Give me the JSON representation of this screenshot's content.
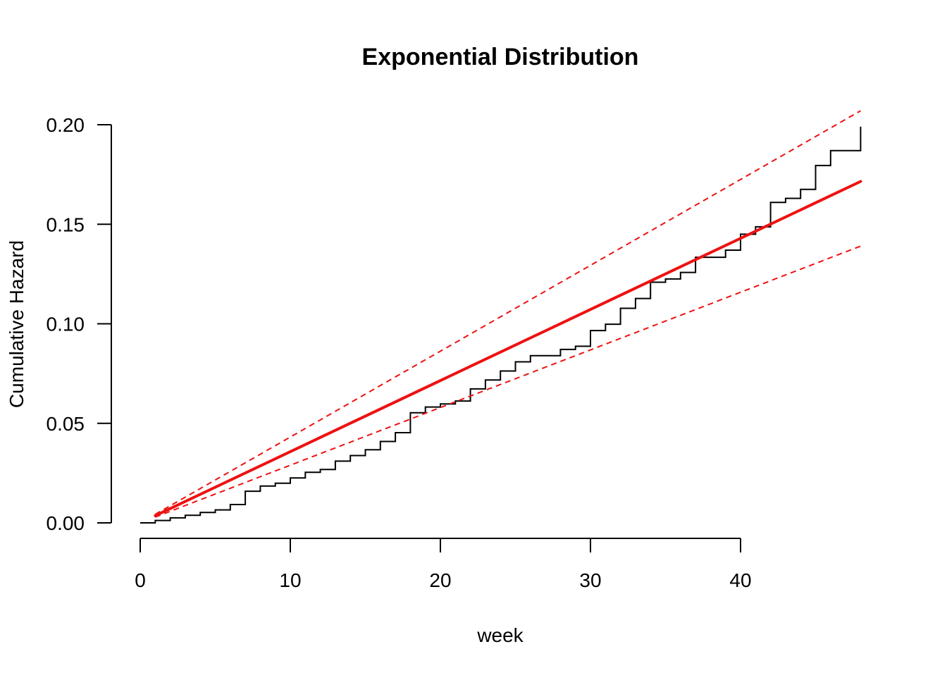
{
  "chart_data": {
    "type": "line",
    "title": "Exponential Distribution",
    "xlabel": "week",
    "ylabel": "Cumulative Hazard",
    "xlim": [
      0,
      48
    ],
    "ylim": [
      0,
      0.2
    ],
    "x_ticks": [
      0,
      10,
      20,
      30,
      40
    ],
    "x_tick_labels": [
      "0",
      "10",
      "20",
      "30",
      "40"
    ],
    "y_ticks": [
      0,
      0.05,
      0.1,
      0.15,
      0.2
    ],
    "y_tick_labels": [
      "0.00",
      "0.05",
      "0.10",
      "0.15",
      "0.20"
    ],
    "grid": false,
    "legend": "none",
    "colors": {
      "fitted": "#ee1111",
      "empirical": "#000000",
      "axes": "#000000"
    },
    "series": [
      {
        "type": "step",
        "color": "#000000",
        "x": [
          0,
          1,
          2,
          3,
          4,
          5,
          6,
          7,
          8,
          9,
          10,
          11,
          12,
          13,
          14,
          15,
          16,
          17,
          18,
          19,
          20,
          21,
          22,
          23,
          24,
          25,
          26,
          27,
          28,
          29,
          30,
          31,
          32,
          33,
          34,
          35,
          36,
          37,
          38,
          39,
          40,
          41,
          42,
          43,
          44,
          45,
          46,
          47,
          48
        ],
        "y": [
          0.0,
          0.0012,
          0.0025,
          0.0038,
          0.0052,
          0.0065,
          0.0092,
          0.0159,
          0.0185,
          0.0199,
          0.0226,
          0.0254,
          0.0268,
          0.031,
          0.0338,
          0.0367,
          0.0409,
          0.0453,
          0.0553,
          0.0582,
          0.0597,
          0.0612,
          0.0673,
          0.0718,
          0.0763,
          0.0809,
          0.084,
          0.084,
          0.0871,
          0.0887,
          0.0966,
          0.0998,
          0.1078,
          0.1127,
          0.1209,
          0.1225,
          0.1258,
          0.1334,
          0.1334,
          0.137,
          0.145,
          0.1487,
          0.161,
          0.163,
          0.1675,
          0.1795,
          0.187,
          0.187,
          0.199
        ]
      },
      {
        "type": "line",
        "color": "#ee1111",
        "style": "solid",
        "x": [
          1,
          48
        ],
        "y": [
          0.0036,
          0.1715
        ]
      },
      {
        "type": "line",
        "color": "#ee1111",
        "style": "dashed",
        "x": [
          1,
          48
        ],
        "y": [
          0.0043,
          0.207
        ]
      },
      {
        "type": "line",
        "color": "#ee1111",
        "style": "dashed",
        "x": [
          1,
          48
        ],
        "y": [
          0.0029,
          0.139
        ]
      }
    ]
  }
}
